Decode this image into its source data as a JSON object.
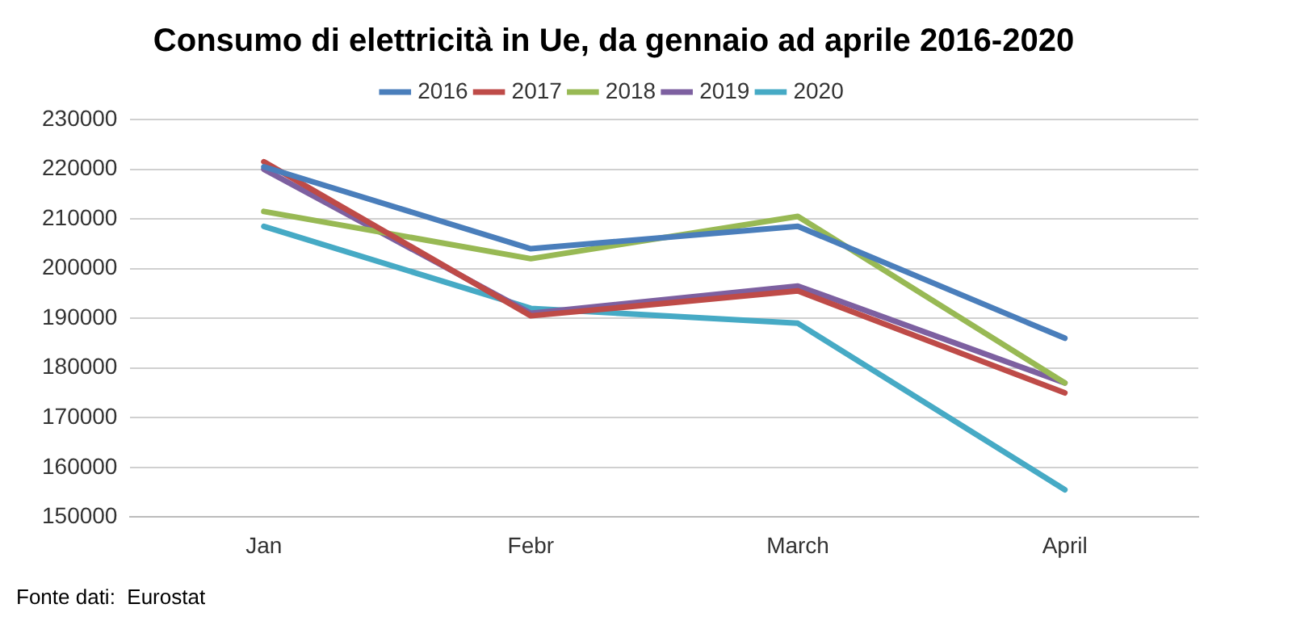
{
  "chart_data": {
    "type": "line",
    "title": "Consumo di elettricità in Ue, da gennaio ad aprile 2016-2020",
    "categories": [
      "Jan",
      "Febr",
      "March",
      "April"
    ],
    "series": [
      {
        "name": "2016",
        "color": "#4a7ebb",
        "values": [
          220500,
          204000,
          208500,
          186000
        ]
      },
      {
        "name": "2017",
        "color": "#be4b48",
        "values": [
          221500,
          190500,
          195500,
          175000
        ]
      },
      {
        "name": "2018",
        "color": "#98b954",
        "values": [
          211500,
          202000,
          210500,
          177000
        ]
      },
      {
        "name": "2019",
        "color": "#7d60a0",
        "values": [
          220000,
          191000,
          196500,
          177000
        ]
      },
      {
        "name": "2020",
        "color": "#46aac5",
        "values": [
          208500,
          192000,
          189000,
          155500
        ]
      }
    ],
    "ylim": [
      150000,
      230000
    ],
    "yticks": [
      150000,
      160000,
      170000,
      180000,
      190000,
      200000,
      210000,
      220000,
      230000
    ],
    "grid": "y",
    "legend": "top",
    "marker": "none",
    "line_style": "solid",
    "annotations": [
      "Fonte dati:  Eurostat"
    ]
  }
}
